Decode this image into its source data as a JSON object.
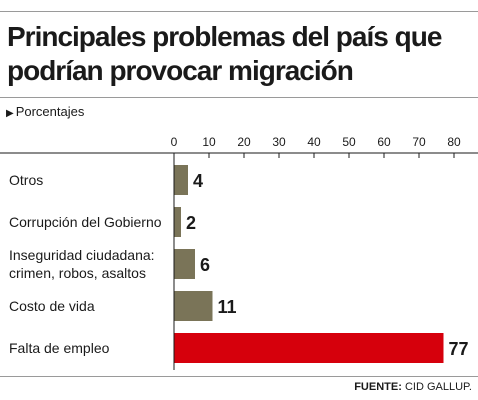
{
  "header": {
    "title_line1": "Principales problemas del país que",
    "title_line2": "podrían provocar migración",
    "subtitle": "Porcentajes"
  },
  "chart_data": {
    "type": "bar",
    "orientation": "horizontal",
    "title": "Principales problemas del país que podrían provocar migración",
    "subtitle": "Porcentajes",
    "categories": [
      "Otros",
      "Corrupción del Gobierno",
      "Inseguridad ciudadana: crimen, robos, asaltos",
      "Costo de vida",
      "Falta de empleo"
    ],
    "category_lines": [
      [
        "Otros"
      ],
      [
        "Corrupción del Gobierno"
      ],
      [
        "Inseguridad ciudadana:",
        "crimen, robos, asaltos"
      ],
      [
        "Costo de vida"
      ],
      [
        "Falta de empleo"
      ]
    ],
    "values": [
      4,
      2,
      6,
      11,
      77
    ],
    "value_labels": [
      "4",
      "2",
      "6",
      "11",
      "77"
    ],
    "xlim": [
      0,
      80
    ],
    "xticks": [
      0,
      10,
      20,
      30,
      40,
      50,
      60,
      70,
      80
    ],
    "tick_labels": [
      "0",
      "10",
      "20",
      "30",
      "40",
      "50",
      "60",
      "70",
      "80"
    ],
    "tick_position": "top",
    "grid": false,
    "legend": "none",
    "bar_colors": [
      "#7a7458",
      "#7a7458",
      "#7a7458",
      "#7a7458",
      "#d6000c"
    ]
  },
  "footer": {
    "source_label": "FUENTE:",
    "source_value": "CID GALLUP."
  }
}
